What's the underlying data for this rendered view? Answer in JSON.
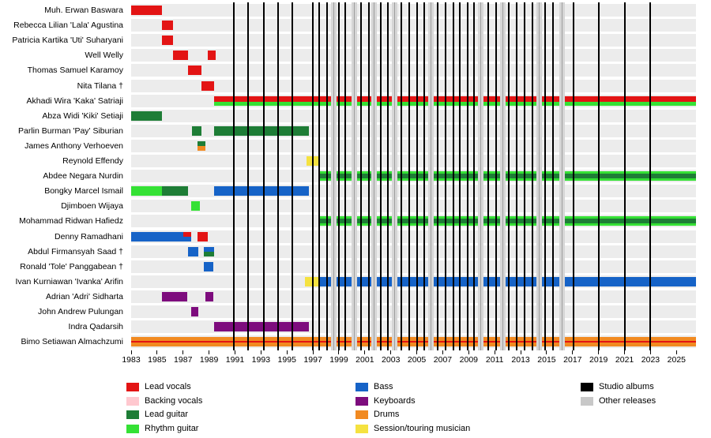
{
  "chart_data": {
    "type": "timeline",
    "description": "Band members timeline with roles as colored bars and release dates as vertical lines",
    "x_min": 1983,
    "x_max": 2026.5,
    "x_ticks": [
      1983,
      1985,
      1987,
      1989,
      1991,
      1993,
      1995,
      1997,
      1999,
      2001,
      2003,
      2005,
      2007,
      2009,
      2011,
      2013,
      2015,
      2017,
      2019,
      2021,
      2023,
      2025
    ],
    "colors": {
      "lead_vocals": "#e31414",
      "backing_vocals": "#ffc8cf",
      "lead_guitar": "#1e7d36",
      "rhythm_guitar": "#35e135",
      "bass": "#1663c7",
      "keyboards": "#7d0c7d",
      "drums": "#f18a21",
      "session": "#f5e240",
      "studio_album_line": "#000000",
      "other_release_line": "#c8c8c8"
    },
    "members": [
      {
        "name": "Muh. Erwan Baswara",
        "bars": [
          {
            "from": 1983.0,
            "to": 1985.4,
            "stripes": [
              [
                "lead_vocals",
                1
              ]
            ]
          }
        ]
      },
      {
        "name": "Rebecca Lilian 'Lala' Agustina",
        "bars": [
          {
            "from": 1985.4,
            "to": 1986.2,
            "stripes": [
              [
                "lead_vocals",
                1
              ]
            ]
          }
        ]
      },
      {
        "name": "Patricia Kartika 'Uti' Suharyani",
        "bars": [
          {
            "from": 1985.4,
            "to": 1986.2,
            "stripes": [
              [
                "lead_vocals",
                1
              ]
            ]
          }
        ]
      },
      {
        "name": "Well Welly",
        "bars": [
          {
            "from": 1986.2,
            "to": 1987.4,
            "stripes": [
              [
                "lead_vocals",
                1
              ]
            ]
          },
          {
            "from": 1988.9,
            "to": 1989.5,
            "stripes": [
              [
                "lead_vocals",
                1
              ]
            ]
          }
        ]
      },
      {
        "name": "Thomas Samuel Karamoy",
        "bars": [
          {
            "from": 1987.4,
            "to": 1988.4,
            "stripes": [
              [
                "lead_vocals",
                1
              ]
            ]
          }
        ]
      },
      {
        "name": "Nita Tilana †",
        "bars": [
          {
            "from": 1988.4,
            "to": 1989.4,
            "stripes": [
              [
                "lead_vocals",
                1
              ]
            ]
          }
        ]
      },
      {
        "name": "Akhadi Wira 'Kaka' Satriaji",
        "bars": [
          {
            "from": 1989.4,
            "to": 2026.5,
            "stripes": [
              [
                "lead_vocals",
                0.62
              ],
              [
                "rhythm_guitar",
                0.38
              ]
            ]
          }
        ]
      },
      {
        "name": "Abza Widi 'Kiki' Setiaji",
        "bars": [
          {
            "from": 1983.0,
            "to": 1985.4,
            "stripes": [
              [
                "lead_guitar",
                1
              ]
            ]
          }
        ]
      },
      {
        "name": "Parlin Burman 'Pay' Siburian",
        "bars": [
          {
            "from": 1987.7,
            "to": 1988.4,
            "stripes": [
              [
                "lead_guitar",
                1
              ]
            ]
          },
          {
            "from": 1989.4,
            "to": 1996.7,
            "stripes": [
              [
                "lead_guitar",
                1
              ]
            ]
          }
        ]
      },
      {
        "name": "James Anthony Verhoeven",
        "bars": [
          {
            "from": 1988.1,
            "to": 1988.7,
            "stripes": [
              [
                "lead_guitar",
                0.5
              ],
              [
                "drums",
                0.5
              ]
            ]
          }
        ]
      },
      {
        "name": "Reynold Effendy",
        "bars": [
          {
            "from": 1996.5,
            "to": 1997.4,
            "stripes": [
              [
                "session",
                1
              ]
            ]
          }
        ]
      },
      {
        "name": "Abdee Negara Nurdin",
        "bars": [
          {
            "from": 1997.4,
            "to": 2026.5,
            "stripes": [
              [
                "rhythm_guitar",
                0.25
              ],
              [
                "lead_guitar",
                0.5
              ],
              [
                "rhythm_guitar",
                0.25
              ]
            ]
          }
        ]
      },
      {
        "name": "Bongky Marcel Ismail",
        "bars": [
          {
            "from": 1983.0,
            "to": 1985.4,
            "stripes": [
              [
                "rhythm_guitar",
                1
              ]
            ]
          },
          {
            "from": 1985.4,
            "to": 1987.4,
            "stripes": [
              [
                "lead_guitar",
                1
              ]
            ]
          },
          {
            "from": 1989.4,
            "to": 1996.7,
            "stripes": [
              [
                "bass",
                1
              ]
            ]
          }
        ]
      },
      {
        "name": "Djimboen Wijaya",
        "bars": [
          {
            "from": 1987.6,
            "to": 1988.3,
            "stripes": [
              [
                "rhythm_guitar",
                1
              ]
            ]
          }
        ]
      },
      {
        "name": "Mohammad Ridwan Hafiedz",
        "bars": [
          {
            "from": 1997.4,
            "to": 2026.5,
            "stripes": [
              [
                "rhythm_guitar",
                0.25
              ],
              [
                "lead_guitar",
                0.5
              ],
              [
                "rhythm_guitar",
                0.25
              ]
            ]
          }
        ]
      },
      {
        "name": "Denny Ramadhani",
        "bars": [
          {
            "from": 1983.0,
            "to": 1987.0,
            "stripes": [
              [
                "bass",
                1
              ]
            ]
          },
          {
            "from": 1987.0,
            "to": 1987.6,
            "stripes": [
              [
                "lead_vocals",
                0.5
              ],
              [
                "bass",
                0.5
              ]
            ]
          },
          {
            "from": 1988.1,
            "to": 1988.9,
            "stripes": [
              [
                "lead_vocals",
                1
              ]
            ]
          }
        ]
      },
      {
        "name": "Abdul Firmansyah Saad †",
        "bars": [
          {
            "from": 1987.4,
            "to": 1988.2,
            "stripes": [
              [
                "bass",
                1
              ]
            ]
          },
          {
            "from": 1988.6,
            "to": 1989.4,
            "stripes": [
              [
                "bass",
                0.55
              ],
              [
                "lead_guitar",
                0.45
              ]
            ]
          }
        ]
      },
      {
        "name": "Ronald 'Tole' Panggabean †",
        "bars": [
          {
            "from": 1988.6,
            "to": 1989.3,
            "stripes": [
              [
                "bass",
                1
              ]
            ]
          }
        ]
      },
      {
        "name": "Ivan Kurniawan 'Ivanka' Arifin",
        "bars": [
          {
            "from": 1996.4,
            "to": 1997.4,
            "stripes": [
              [
                "session",
                1
              ]
            ]
          },
          {
            "from": 1997.4,
            "to": 2026.5,
            "stripes": [
              [
                "bass",
                1
              ]
            ]
          }
        ]
      },
      {
        "name": "Adrian 'Adri' Sidharta",
        "bars": [
          {
            "from": 1985.4,
            "to": 1987.3,
            "stripes": [
              [
                "keyboards",
                1
              ]
            ]
          },
          {
            "from": 1988.7,
            "to": 1989.3,
            "stripes": [
              [
                "keyboards",
                1
              ]
            ]
          }
        ]
      },
      {
        "name": "John Andrew Pulungan",
        "bars": [
          {
            "from": 1987.6,
            "to": 1988.2,
            "stripes": [
              [
                "keyboards",
                1
              ]
            ]
          }
        ]
      },
      {
        "name": "Indra Qadarsih",
        "bars": [
          {
            "from": 1989.4,
            "to": 1996.7,
            "stripes": [
              [
                "keyboards",
                1
              ]
            ]
          }
        ]
      },
      {
        "name": "Bimo Setiawan Almachzumi",
        "bars": [
          {
            "from": 1983.0,
            "to": 2026.5,
            "stripes": [
              [
                "drums",
                0.4
              ],
              [
                "lead_vocals",
                0.2
              ],
              [
                "drums",
                0.4
              ]
            ]
          }
        ]
      }
    ],
    "album_lines": {
      "studio": [
        1990.9,
        1992.0,
        1993.2,
        1994.3,
        1995.4,
        1997.0,
        1997.5,
        1998.1,
        1999.0,
        1999.5,
        2000.7,
        2001.3,
        2002.2,
        2002.8,
        2003.8,
        2004.4,
        2005.0,
        2005.6,
        2006.6,
        2007.2,
        2007.8,
        2008.3,
        2008.9,
        2009.4,
        2010.5,
        2011.1,
        2012.1,
        2012.7,
        2013.3,
        2013.9,
        2014.9,
        2015.5,
        2017.1,
        2019.0,
        2021.0,
        2023.0
      ],
      "other": [
        1998.6,
        2000.2,
        2001.7,
        2003.3,
        2006.1,
        2009.9,
        2011.6,
        2014.4,
        2016.2
      ]
    },
    "legend": {
      "columns": [
        {
          "items": [
            {
              "role": "lead_vocals",
              "label": "Lead vocals"
            },
            {
              "role": "backing_vocals",
              "label": "Backing vocals"
            },
            {
              "role": "lead_guitar",
              "label": "Lead guitar"
            },
            {
              "role": "rhythm_guitar",
              "label": "Rhythm guitar"
            }
          ]
        },
        {
          "items": [
            {
              "role": "bass",
              "label": "Bass"
            },
            {
              "role": "keyboards",
              "label": "Keyboards"
            },
            {
              "role": "drums",
              "label": "Drums"
            },
            {
              "role": "session",
              "label": "Session/touring musician"
            }
          ]
        },
        {
          "items": [
            {
              "role": "studio_album_line",
              "label": "Studio albums"
            },
            {
              "role": "other_release_line",
              "label": "Other releases"
            }
          ]
        }
      ]
    }
  }
}
